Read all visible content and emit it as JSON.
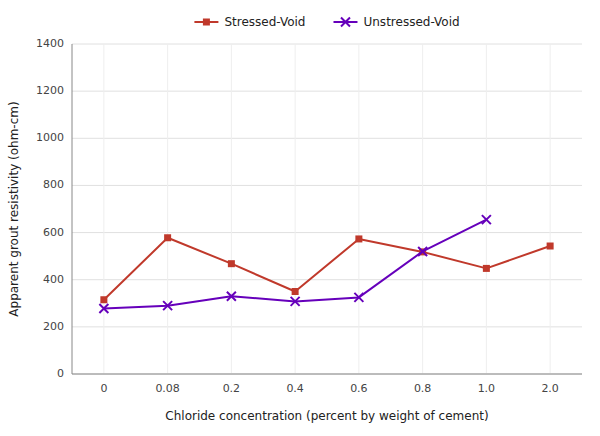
{
  "chart_data": {
    "type": "line",
    "xlabel": "Chloride concentration (percent by weight of cement)",
    "ylabel": "Apparent grout resistivity (ohm-cm)",
    "categories": [
      "0",
      "0.08",
      "0.2",
      "0.4",
      "0.6",
      "0.8",
      "1.0",
      "2.0"
    ],
    "series": [
      {
        "name": "Stressed-Void",
        "color": "#C0392B",
        "marker": "square",
        "values": [
          315,
          578,
          468,
          350,
          573,
          518,
          448,
          543
        ]
      },
      {
        "name": "Unstressed-Void",
        "color": "#6600BB",
        "marker": "x",
        "values": [
          278,
          290,
          330,
          308,
          325,
          520,
          655,
          null
        ]
      }
    ],
    "ylim": [
      0,
      1400
    ],
    "yticks": [
      0,
      200,
      400,
      600,
      800,
      1000,
      1200,
      1400
    ],
    "grid": true,
    "legend": "top"
  }
}
